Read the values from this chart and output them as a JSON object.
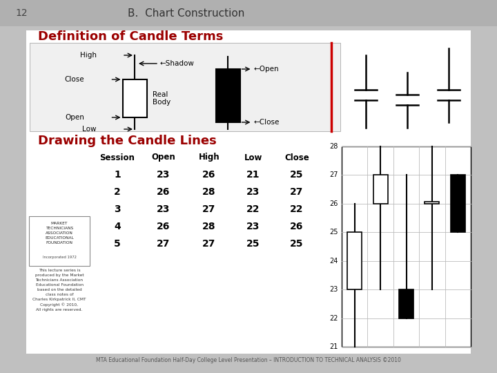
{
  "slide_number": "12",
  "header_text": "B.  Chart Construction",
  "bg_color": "#c0c0c0",
  "slide_bg": "#c0c0c0",
  "content_bg": "#ffffff",
  "section1_title": "Definition of Candle Terms",
  "section2_title": "Drawing the Candle Lines",
  "footer_text": "MTA Educational Foundation Half-Day College Level Presentation – INTRODUCTION TO TECHNICAL ANALYSIS ©2010",
  "title_color": "#9b0000",
  "header_color": "#333333",
  "candle_data": [
    {
      "session": 1,
      "open": 23,
      "high": 26,
      "low": 21,
      "close": 25
    },
    {
      "session": 2,
      "open": 26,
      "high": 28,
      "low": 23,
      "close": 27
    },
    {
      "session": 3,
      "open": 23,
      "high": 27,
      "low": 22,
      "close": 22
    },
    {
      "session": 4,
      "open": 26,
      "high": 28,
      "low": 23,
      "close": 26
    },
    {
      "session": 5,
      "open": 27,
      "high": 27,
      "low": 25,
      "close": 25
    }
  ],
  "red_line_color": "#cc0000",
  "table_headers": [
    "Session",
    "Open",
    "High",
    "Low",
    "Close"
  ],
  "price_min": 21,
  "price_max": 28
}
